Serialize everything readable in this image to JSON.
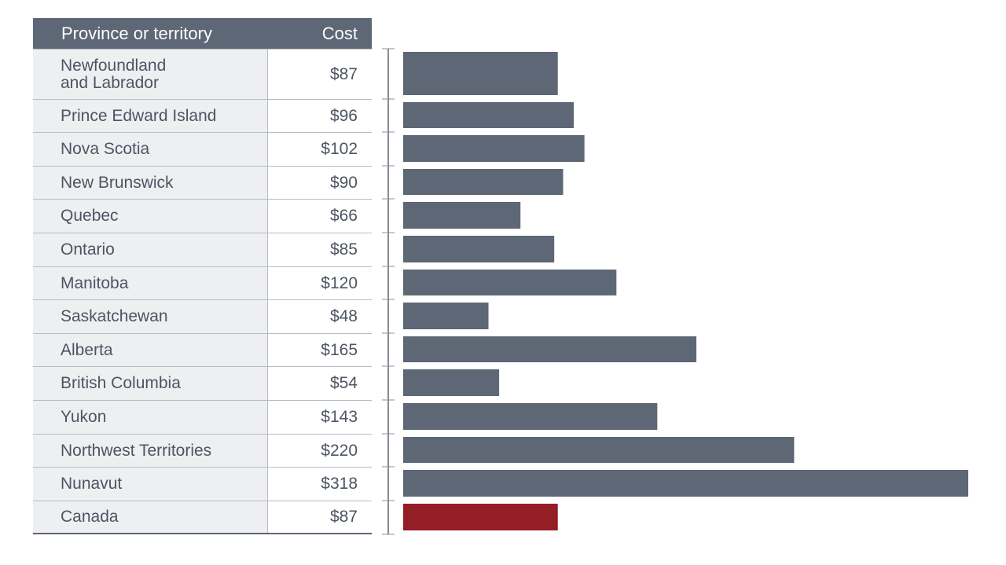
{
  "table": {
    "header_name": "Province or territory",
    "header_cost": "Cost",
    "rows": [
      {
        "name": "Newfoundland\nand Labrador",
        "cost": "$87"
      },
      {
        "name": "Prince Edward Island",
        "cost": "$96"
      },
      {
        "name": "Nova Scotia",
        "cost": "$102"
      },
      {
        "name": "New Brunswick",
        "cost": "$90"
      },
      {
        "name": "Quebec",
        "cost": "$66"
      },
      {
        "name": "Ontario",
        "cost": "$85"
      },
      {
        "name": "Manitoba",
        "cost": "$120"
      },
      {
        "name": "Saskatchewan",
        "cost": "$48"
      },
      {
        "name": "Alberta",
        "cost": "$165"
      },
      {
        "name": "British Columbia",
        "cost": "$54"
      },
      {
        "name": "Yukon",
        "cost": "$143"
      },
      {
        "name": "Northwest Territories",
        "cost": "$220"
      },
      {
        "name": "Nunavut",
        "cost": "$318"
      },
      {
        "name": "Canada",
        "cost": "$87"
      }
    ]
  },
  "colors": {
    "bar": "#5d6775",
    "highlight_bar": "#951d26",
    "header_bg": "#5d6775"
  },
  "chart_data": {
    "type": "bar",
    "orientation": "horizontal",
    "categories": [
      "Newfoundland and Labrador",
      "Prince Edward Island",
      "Nova Scotia",
      "New Brunswick",
      "Quebec",
      "Ontario",
      "Manitoba",
      "Saskatchewan",
      "Alberta",
      "British Columbia",
      "Yukon",
      "Northwest Territories",
      "Nunavut",
      "Canada"
    ],
    "values": [
      87,
      96,
      102,
      90,
      66,
      85,
      120,
      48,
      165,
      54,
      143,
      220,
      318,
      87
    ],
    "highlight_category": "Canada",
    "xlim": [
      0,
      318
    ],
    "grid": false,
    "legend": "none"
  }
}
